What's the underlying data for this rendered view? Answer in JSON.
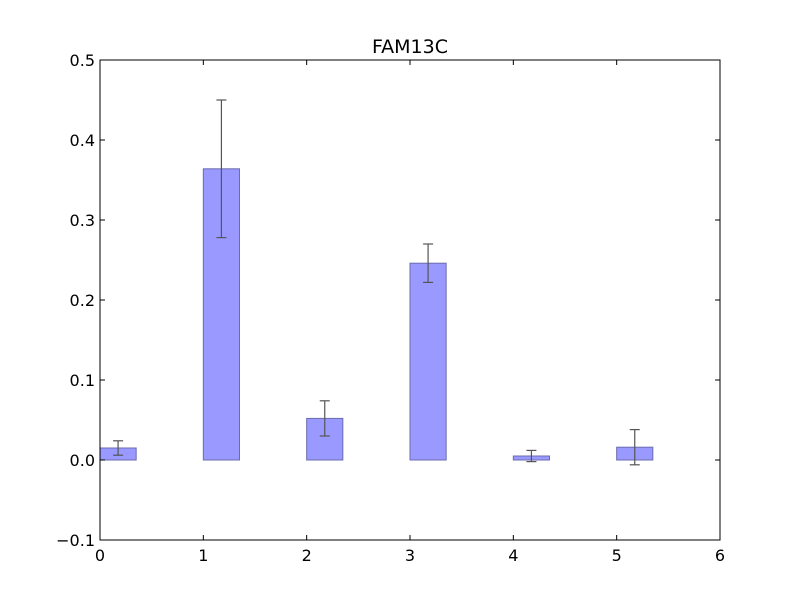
{
  "chart_data": {
    "type": "bar",
    "title": "FAM13C",
    "xlabel": "",
    "ylabel": "",
    "xlim": [
      0,
      6
    ],
    "ylim": [
      -0.1,
      0.5
    ],
    "x_ticks": [
      "0",
      "1",
      "2",
      "3",
      "4",
      "5",
      "6"
    ],
    "y_ticks": [
      "−0.1",
      "0.0",
      "0.1",
      "0.2",
      "0.3",
      "0.4",
      "0.5"
    ],
    "grid": false,
    "bar_width": 0.35,
    "bars": [
      {
        "x": 0,
        "value": 0.015,
        "err": 0.009
      },
      {
        "x": 1,
        "value": 0.364,
        "err": 0.086
      },
      {
        "x": 2,
        "value": 0.052,
        "err": 0.022
      },
      {
        "x": 3,
        "value": 0.246,
        "err": 0.024
      },
      {
        "x": 4,
        "value": 0.005,
        "err": 0.007
      },
      {
        "x": 5,
        "value": 0.016,
        "err": 0.022
      }
    ],
    "colors": {
      "bar_fill": "#9999ff",
      "bar_edge": "#6b6bb0",
      "error_bar": "#555555"
    }
  }
}
